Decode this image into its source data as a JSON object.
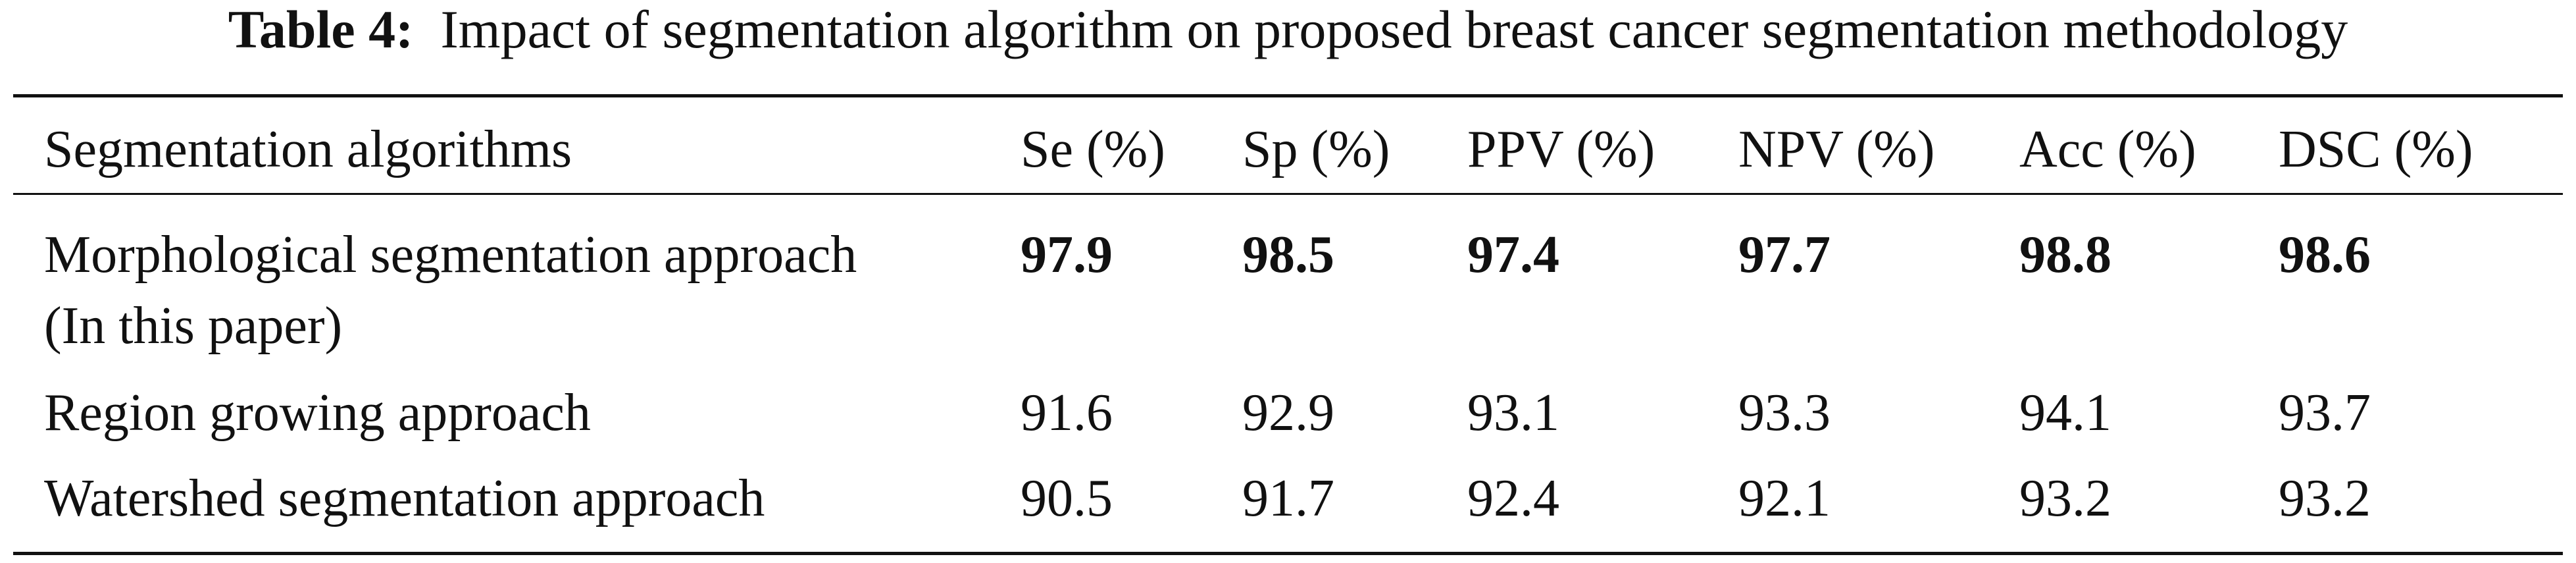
{
  "caption": {
    "label": "Table 4:",
    "text": "Impact of segmentation algorithm on proposed breast cancer segmentation methodology"
  },
  "table": {
    "header": [
      "Segmentation algorithms",
      "Se (%)",
      "Sp (%)",
      "PPV (%)",
      "NPV (%)",
      "Acc (%)",
      "DSC (%)"
    ],
    "rows": [
      {
        "label": [
          "Morphological segmentation approach",
          "(In this paper)"
        ],
        "values": [
          97.9,
          98.5,
          97.4,
          97.7,
          98.8,
          98.6
        ],
        "bold": true
      },
      {
        "label": [
          "Region growing approach"
        ],
        "values": [
          91.6,
          92.9,
          93.1,
          93.3,
          94.1,
          93.7
        ],
        "bold": false
      },
      {
        "label": [
          "Watershed segmentation approach"
        ],
        "values": [
          90.5,
          91.7,
          92.4,
          92.1,
          93.2,
          93.2
        ],
        "bold": false
      }
    ]
  }
}
